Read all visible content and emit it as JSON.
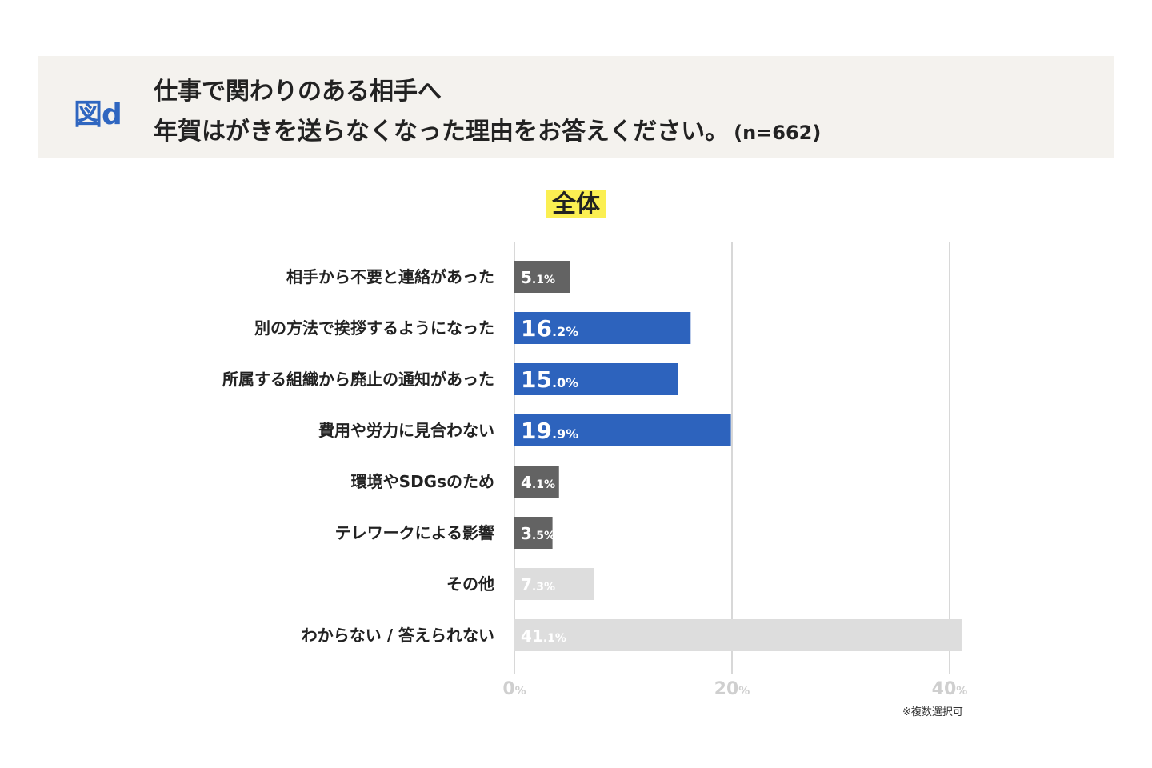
{
  "header": {
    "figure_label": "図d",
    "title_line1": "仕事で関わりのある相手へ",
    "title_line2": "年賀はがきを送らなくなった理由をお答えください。",
    "sample_size": "(n=662)"
  },
  "subtitle": "全体",
  "note": "※複数選択可",
  "colors": {
    "highlight": "#2d63bd",
    "normal": "#636363",
    "muted": "#dddddd",
    "gridline": "#cccccc",
    "tick_label": "#cfcfcf",
    "header_bg": "#f4f2ee",
    "subtitle_bg": "#fbef52"
  },
  "chart_data": {
    "type": "bar",
    "orientation": "horizontal",
    "categories": [
      "相手から不要と連絡があった",
      "別の方法で挨拶するようになった",
      "所属する組織から廃止の通知があった",
      "費用や労力に見合わない",
      "環境やSDGsのため",
      "テレワークによる影響",
      "その他",
      "わからない / 答えられない"
    ],
    "values": [
      5.1,
      16.2,
      15.0,
      19.9,
      4.1,
      3.5,
      7.3,
      41.1
    ],
    "value_labels": [
      "5.1%",
      "16.2%",
      "15.0%",
      "19.9%",
      "4.1%",
      "3.5%",
      "7.3%",
      "41.1%"
    ],
    "bar_color_keys": [
      "normal",
      "highlight",
      "highlight",
      "highlight",
      "normal",
      "normal",
      "muted",
      "muted"
    ],
    "xlim": [
      0,
      40
    ],
    "ticks": [
      0,
      20,
      40
    ],
    "tick_suffix": "%",
    "grid": true
  }
}
